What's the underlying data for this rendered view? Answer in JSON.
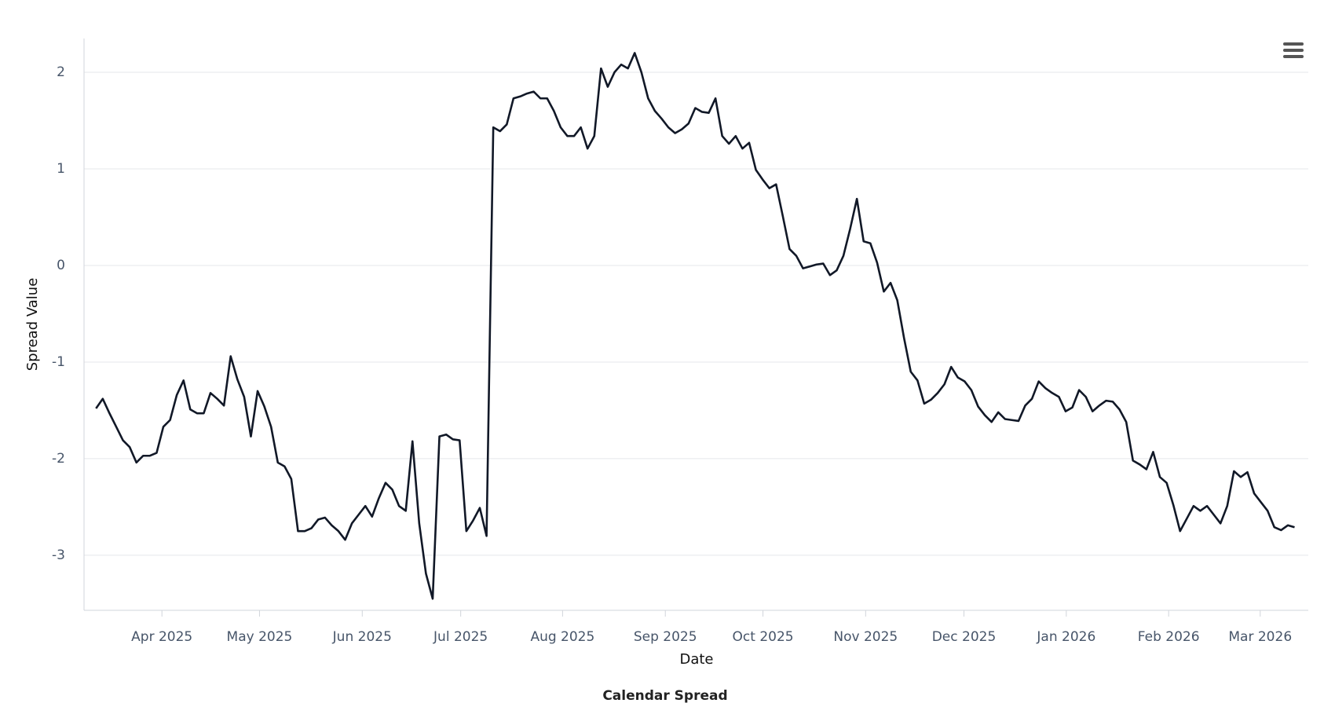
{
  "chart_data": {
    "type": "line",
    "title": "Calendar Spread",
    "x_label": "Date",
    "y_label": "Spread Value",
    "color": "#111827",
    "grid": true,
    "xlim": [
      -1.78,
      180.04
    ],
    "xticks": [
      {
        "value": 9.79,
        "label": "Apr 2025"
      },
      {
        "value": 24.28,
        "label": "May 2025"
      },
      {
        "value": 39.54,
        "label": "Jun 2025"
      },
      {
        "value": 54.16,
        "label": "Jul 2025"
      },
      {
        "value": 69.29,
        "label": "Aug 2025"
      },
      {
        "value": 84.55,
        "label": "Sep 2025"
      },
      {
        "value": 99.05,
        "label": "Oct 2025"
      },
      {
        "value": 114.3,
        "label": "Nov 2025"
      },
      {
        "value": 128.9,
        "label": "Dec 2025"
      },
      {
        "value": 144.1,
        "label": "Jan 2026"
      },
      {
        "value": 159.3,
        "label": "Feb 2026"
      },
      {
        "value": 172.9,
        "label": "Mar 2026"
      }
    ],
    "ylim": [
      -3.57,
      2.35
    ],
    "yticks": [
      -3,
      -2,
      -1,
      0,
      1,
      2
    ],
    "values": [
      -1.48,
      -1.38,
      -1.53,
      -1.67,
      -1.81,
      -1.88,
      -2.04,
      -1.97,
      -1.97,
      -1.94,
      -1.67,
      -1.6,
      -1.34,
      -1.19,
      -1.49,
      -1.53,
      -1.53,
      -1.32,
      -1.38,
      -1.45,
      -0.94,
      -1.18,
      -1.36,
      -1.77,
      -1.3,
      -1.46,
      -1.67,
      -2.04,
      -2.08,
      -2.21,
      -2.75,
      -2.75,
      -2.72,
      -2.63,
      -2.61,
      -2.69,
      -2.75,
      -2.84,
      -2.67,
      -2.58,
      -2.49,
      -2.6,
      -2.41,
      -2.25,
      -2.32,
      -2.49,
      -2.54,
      -1.82,
      -2.67,
      -3.19,
      -3.45,
      -1.77,
      -1.75,
      -1.8,
      -1.81,
      -2.75,
      -2.64,
      -2.51,
      -2.8,
      1.43,
      1.39,
      1.46,
      1.73,
      1.75,
      1.78,
      1.8,
      1.73,
      1.73,
      1.6,
      1.43,
      1.34,
      1.34,
      1.43,
      1.21,
      1.34,
      2.04,
      1.85,
      2.0,
      2.08,
      2.04,
      2.2,
      2.0,
      1.73,
      1.6,
      1.52,
      1.43,
      1.37,
      1.41,
      1.47,
      1.63,
      1.59,
      1.58,
      1.73,
      1.34,
      1.26,
      1.34,
      1.21,
      1.27,
      0.99,
      0.89,
      0.8,
      0.84,
      0.51,
      0.17,
      0.1,
      -0.03,
      -0.01,
      0.01,
      0.02,
      -0.1,
      -0.05,
      0.1,
      0.38,
      0.69,
      0.25,
      0.23,
      0.03,
      -0.27,
      -0.18,
      -0.36,
      -0.75,
      -1.1,
      -1.19,
      -1.43,
      -1.39,
      -1.32,
      -1.23,
      -1.05,
      -1.16,
      -1.2,
      -1.29,
      -1.46,
      -1.55,
      -1.62,
      -1.52,
      -1.59,
      -1.6,
      -1.61,
      -1.45,
      -1.38,
      -1.2,
      -1.27,
      -1.32,
      -1.36,
      -1.51,
      -1.47,
      -1.29,
      -1.36,
      -1.51,
      -1.45,
      -1.4,
      -1.41,
      -1.49,
      -1.62,
      -2.02,
      -2.06,
      -2.11,
      -1.93,
      -2.19,
      -2.25,
      -2.48,
      -2.75,
      -2.62,
      -2.49,
      -2.54,
      -2.49,
      -2.58,
      -2.67,
      -2.49,
      -2.13,
      -2.19,
      -2.14,
      -2.36,
      -2.45,
      -2.54,
      -2.71,
      -2.74,
      -2.69,
      -2.71
    ]
  }
}
